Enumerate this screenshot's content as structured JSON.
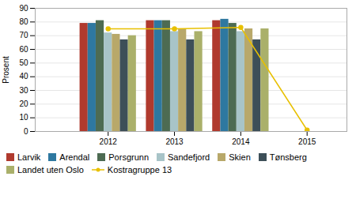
{
  "chart_data": {
    "type": "bar",
    "x": [
      2012,
      2013,
      2014,
      2015
    ],
    "xlim": [
      2010.9,
      2015.6
    ],
    "xticks": [
      2012,
      2013,
      2014,
      2015
    ],
    "ylabel": "Prosent",
    "ylim": [
      0,
      90
    ],
    "yticks": [
      0,
      10,
      20,
      30,
      40,
      50,
      60,
      70,
      80,
      90
    ],
    "grid": true,
    "legend": "bottom",
    "series": [
      {
        "name": "Larvik",
        "color": "#b03a2e",
        "values": [
          79,
          81,
          81,
          null
        ]
      },
      {
        "name": "Arendal",
        "color": "#2e78a0",
        "values": [
          79,
          81,
          82,
          null
        ]
      },
      {
        "name": "Porsgrunn",
        "color": "#4d6b52",
        "values": [
          81,
          81,
          79,
          null
        ]
      },
      {
        "name": "Sandefjord",
        "color": "#a8c4c8",
        "values": [
          72,
          73,
          73,
          null
        ]
      },
      {
        "name": "Skien",
        "color": "#b8a86a",
        "values": [
          71,
          75,
          75,
          null
        ]
      },
      {
        "name": "Tønsberg",
        "color": "#3d4f58",
        "values": [
          67,
          67,
          67,
          null
        ]
      },
      {
        "name": "Landet uten Oslo",
        "color": "#aab06a",
        "values": [
          70,
          73,
          75,
          null
        ]
      },
      {
        "name": "Kostragruppe 13",
        "type": "line",
        "color": "#e8c000",
        "marker": "circle",
        "line_style": "solid",
        "values": [
          75,
          75,
          76,
          1
        ]
      }
    ]
  }
}
